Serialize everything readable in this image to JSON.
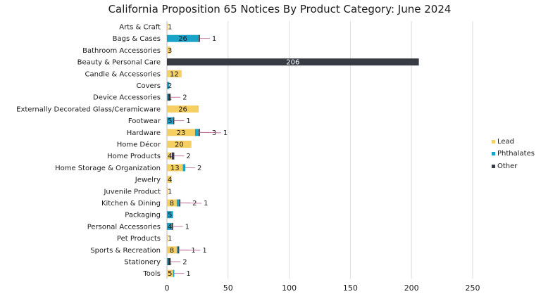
{
  "chart_data": {
    "type": "bar",
    "stacked": true,
    "orientation": "horizontal",
    "title": "California Proposition 65 Notices By Product Category: June 2024",
    "xlabel": "",
    "ylabel": "",
    "xlim": [
      0,
      250
    ],
    "xticks": [
      "0",
      "50",
      "100",
      "150",
      "200",
      "250"
    ],
    "grid": true,
    "legend_position": "right",
    "categories": [
      "Arts & Craft",
      "Bags & Cases",
      "Bathroom Accessories",
      "Beauty & Personal Care",
      "Candle & Accessories",
      "Covers",
      "Device Accessories",
      "Externally Decorated Glass/Ceramicware",
      "Footwear",
      "Hardware",
      "Home Décor",
      "Home Products",
      "Home Storage & Organization",
      "Jewelry",
      "Juvenile Product",
      "Kitchen & Dining",
      "Packaging",
      "Personal Accessories",
      "Pet Products",
      "Sports & Recreation",
      "Stationery",
      "Tools"
    ],
    "series": [
      {
        "name": "Lead",
        "color": "#f5cf62",
        "values": [
          1,
          0,
          3,
          0,
          12,
          0,
          0,
          26,
          0,
          23,
          20,
          4,
          13,
          4,
          1,
          8,
          0,
          0,
          1,
          8,
          0,
          5
        ]
      },
      {
        "name": "Phthalates",
        "color": "#1aa3c9",
        "values": [
          0,
          26,
          0,
          0,
          0,
          2,
          1,
          0,
          5,
          3,
          0,
          0,
          2,
          0,
          0,
          2,
          5,
          4,
          0,
          1,
          1,
          1
        ]
      },
      {
        "name": "Other",
        "color": "#363b44",
        "values": [
          0,
          1,
          0,
          206,
          0,
          0,
          2,
          0,
          1,
          1,
          0,
          2,
          0,
          0,
          0,
          1,
          0,
          1,
          0,
          1,
          2,
          0
        ]
      }
    ],
    "data_labels": [
      [
        "1"
      ],
      [
        "26",
        "1"
      ],
      [
        "3"
      ],
      [
        "206"
      ],
      [
        "12"
      ],
      [
        "2"
      ],
      [
        "1",
        "2"
      ],
      [
        "26"
      ],
      [
        "5",
        "1"
      ],
      [
        "23",
        "3",
        "1"
      ],
      [
        "20"
      ],
      [
        "4",
        "2"
      ],
      [
        "13",
        "2"
      ],
      [
        "4"
      ],
      [
        "1"
      ],
      [
        "8",
        "2",
        "1"
      ],
      [
        "5"
      ],
      [
        "4",
        "1"
      ],
      [
        "1"
      ],
      [
        "8",
        "1",
        "1"
      ],
      [
        "1",
        "2"
      ],
      [
        "5",
        "1"
      ]
    ]
  }
}
